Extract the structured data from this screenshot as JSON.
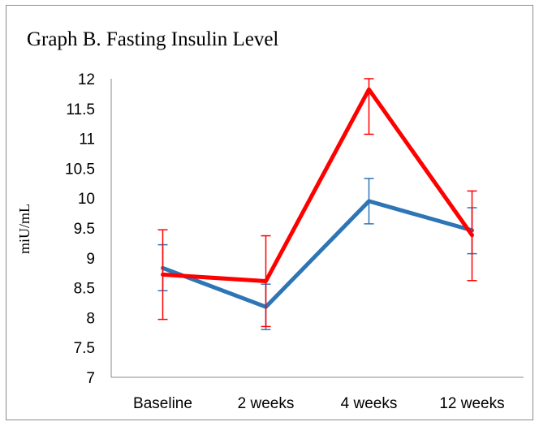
{
  "chart_data": {
    "type": "line",
    "title": "Graph B. Fasting Insulin Level",
    "xlabel": "",
    "ylabel": "miU/mL",
    "categories": [
      "Baseline",
      "2 weeks",
      "4 weeks",
      "12 weeks"
    ],
    "ylim": [
      7,
      12
    ],
    "yticks": [
      7,
      7.5,
      8,
      8.5,
      9,
      9.5,
      10,
      10.5,
      11,
      11.5,
      12
    ],
    "ytick_labels": [
      "7",
      "7.5",
      "8",
      "8.5",
      "9",
      "9.5",
      "10",
      "10.5",
      "11",
      "11.5",
      "12"
    ],
    "grid": false,
    "legend": "none",
    "series": [
      {
        "color": "#2E75B6",
        "values": [
          8.83,
          8.18,
          9.95,
          9.46
        ],
        "error_low": [
          8.45,
          7.8,
          9.57,
          9.07
        ],
        "error_high": [
          9.22,
          8.56,
          10.33,
          9.84
        ]
      },
      {
        "color": "#FF0000",
        "values": [
          8.72,
          8.61,
          11.82,
          9.38
        ],
        "error_low": [
          7.97,
          7.85,
          11.07,
          8.62
        ],
        "error_high": [
          9.47,
          9.37,
          12.0,
          10.12
        ]
      }
    ]
  }
}
